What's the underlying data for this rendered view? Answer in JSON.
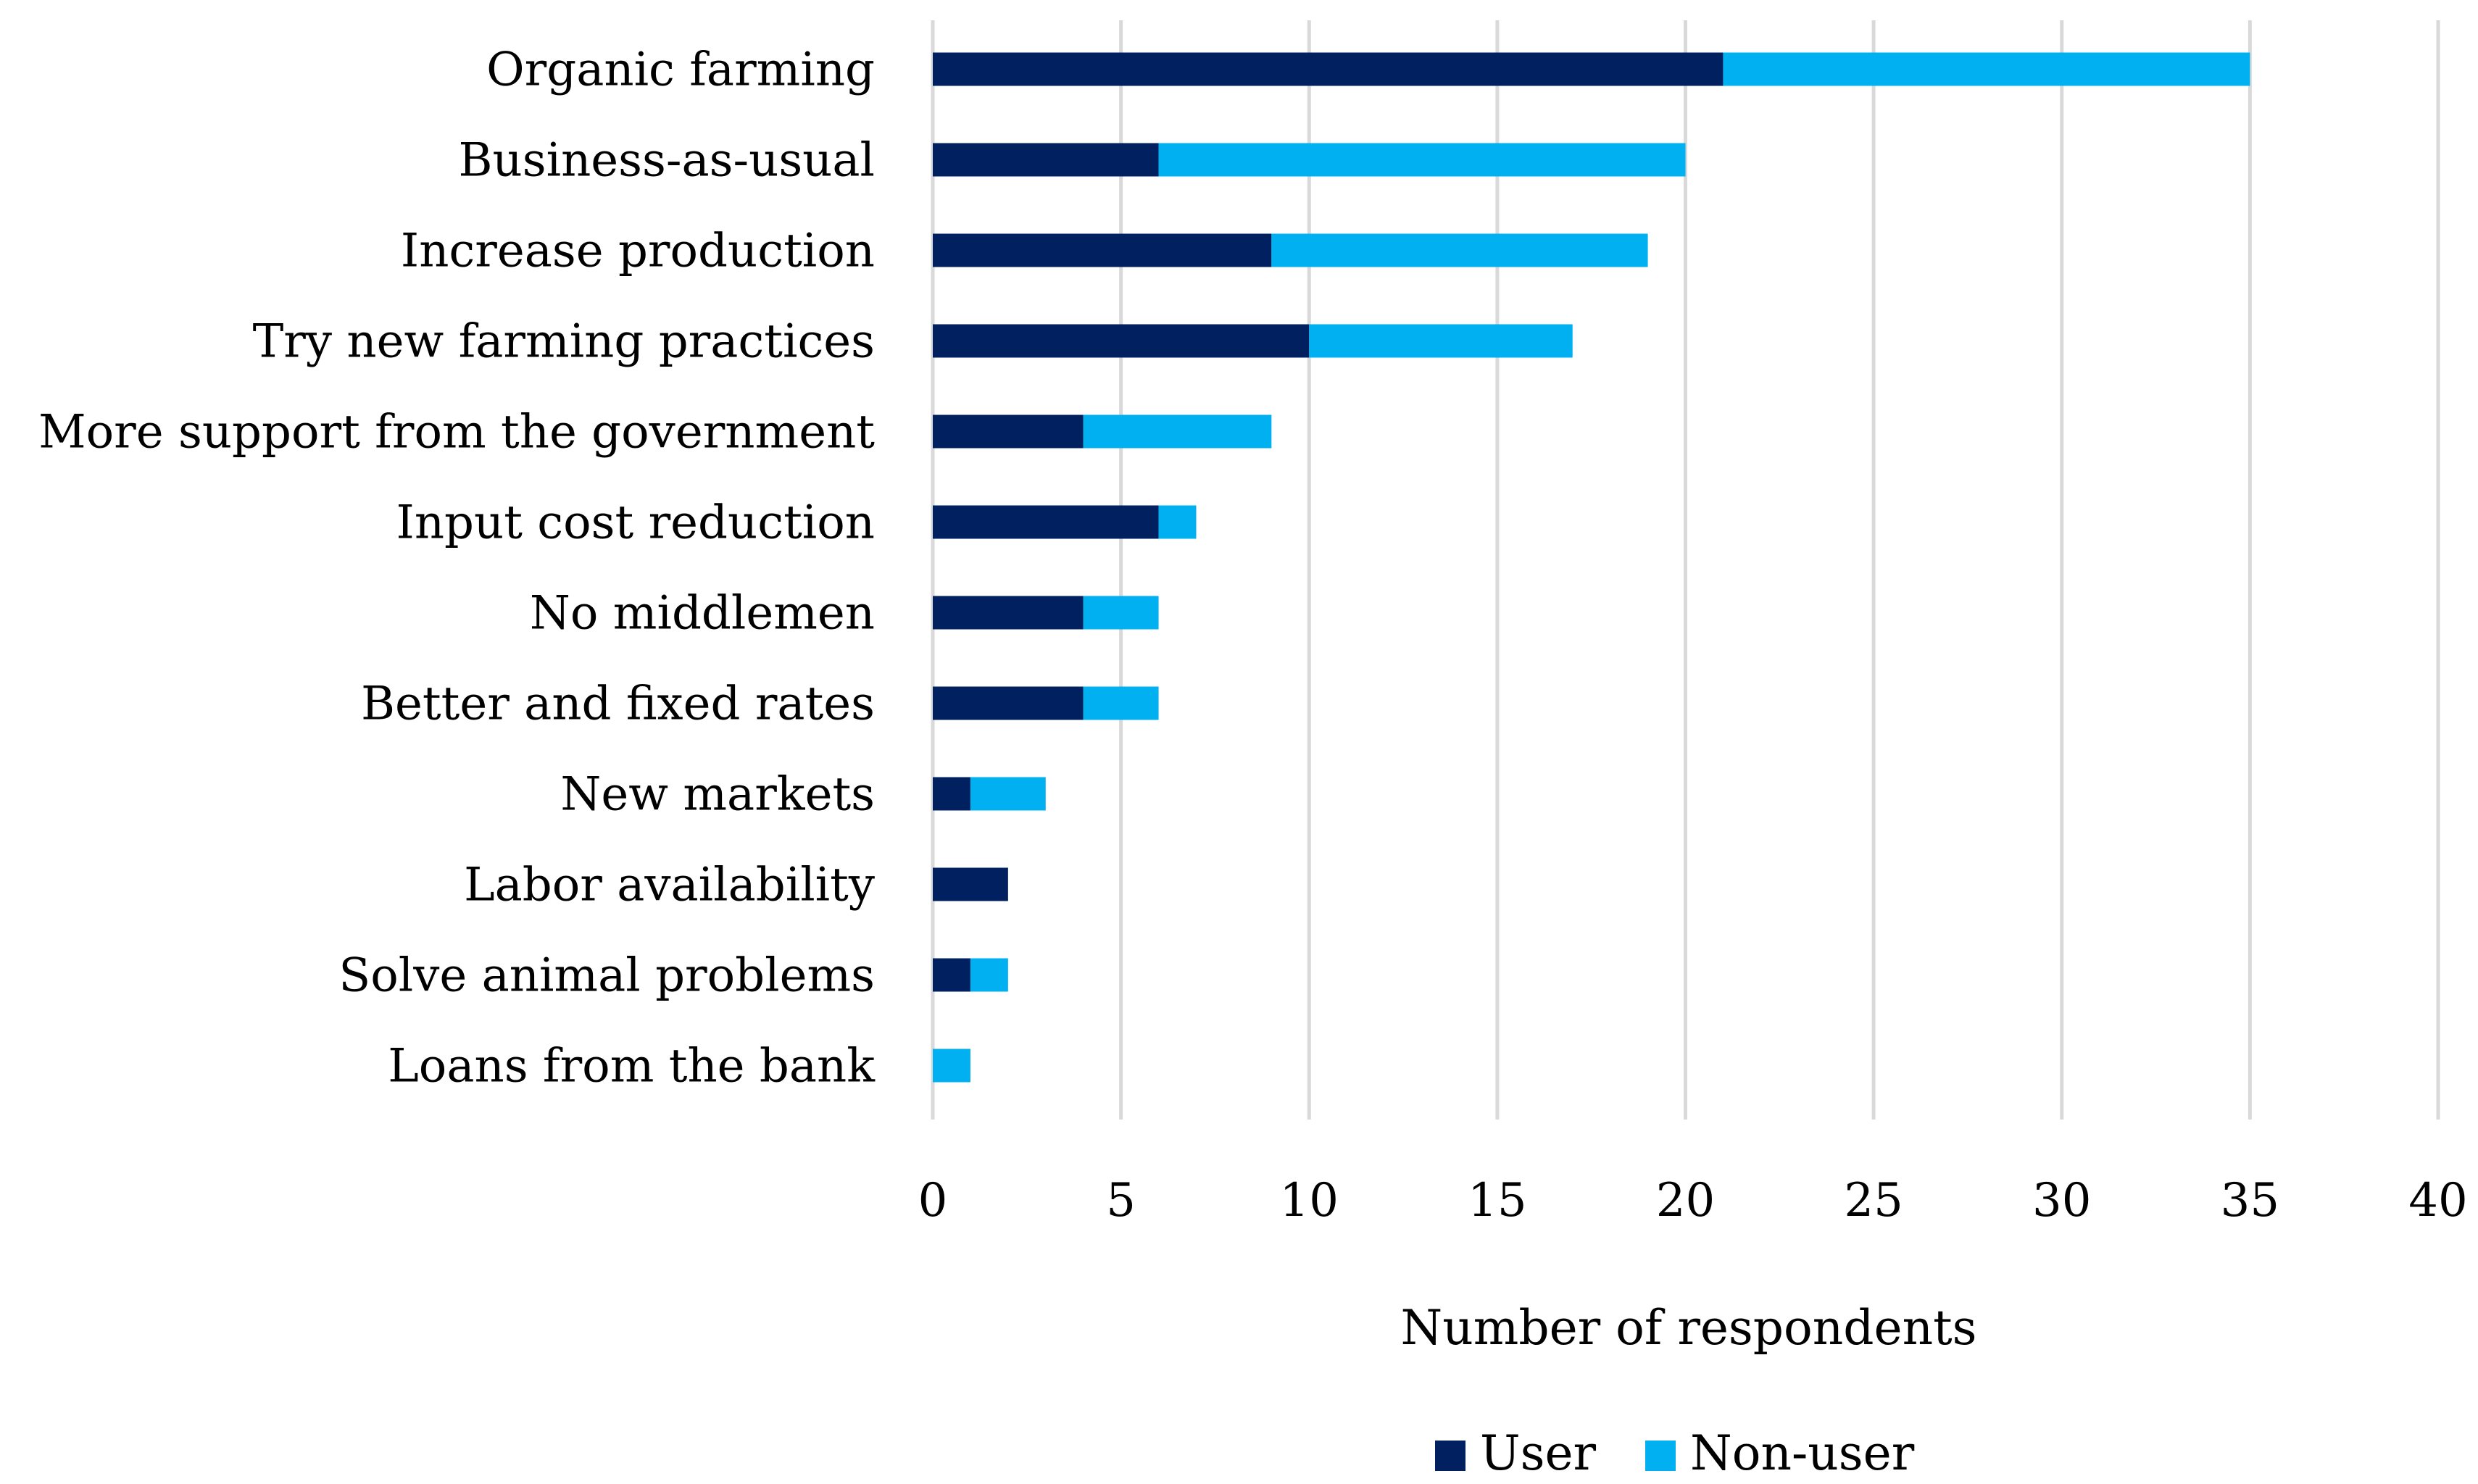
{
  "chart_data": {
    "type": "bar",
    "orientation": "horizontal",
    "stacked": true,
    "title": "",
    "xlabel": "Number of respondents",
    "ylabel": "",
    "xlim": [
      0,
      40
    ],
    "xticks": [
      0,
      5,
      10,
      15,
      20,
      25,
      30,
      35,
      40
    ],
    "grid": true,
    "legend_position": "bottom",
    "categories": [
      "Organic farming",
      "Business-as-usual",
      "Increase production",
      "Try new farming practices",
      "More support from the government",
      "Input cost reduction",
      "No middlemen",
      "Better and fixed rates",
      "New markets",
      "Labor availability",
      "Solve animal problems",
      "Loans from the bank"
    ],
    "series": [
      {
        "name": "User",
        "color": "#002060",
        "values": [
          21,
          6,
          9,
          10,
          4,
          6,
          4,
          4,
          1,
          2,
          1,
          0
        ]
      },
      {
        "name": "Non-user",
        "color": "#00B0F0",
        "values": [
          14,
          14,
          10,
          7,
          5,
          1,
          2,
          2,
          2,
          0,
          1,
          1
        ]
      }
    ]
  }
}
